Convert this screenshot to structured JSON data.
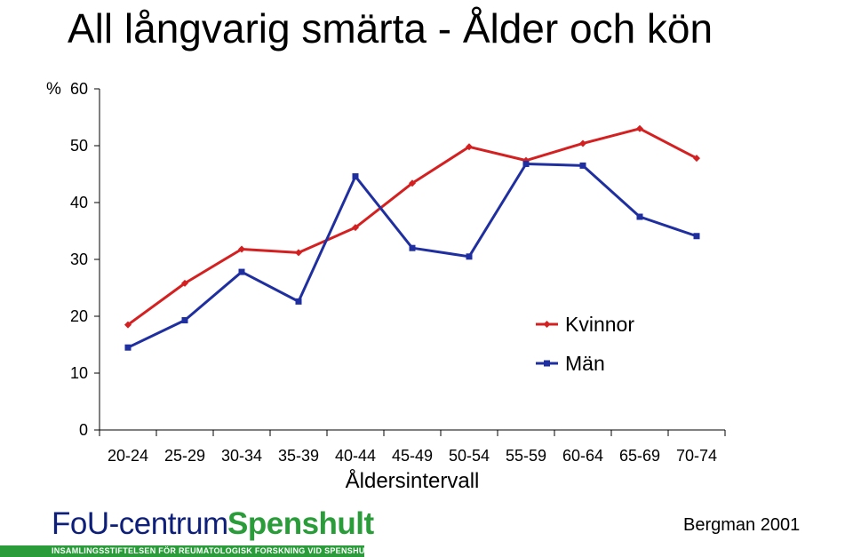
{
  "chart_data": {
    "type": "line",
    "title": "All långvarig smärta - Ålder och kön",
    "ylabel": "%",
    "xlabel": "Åldersintervall",
    "categories": [
      "20-24",
      "25-29",
      "30-34",
      "35-39",
      "40-44",
      "45-49",
      "50-54",
      "55-59",
      "60-64",
      "65-69",
      "70-74"
    ],
    "ylim": [
      0,
      60
    ],
    "yticks": [
      0,
      10,
      20,
      30,
      40,
      50,
      60
    ],
    "grid": false,
    "legend": "right",
    "series": [
      {
        "name": "Kvinnor",
        "color": "#d42020",
        "marker": "diamond",
        "values": [
          18.5,
          25.8,
          31.8,
          31.2,
          35.6,
          43.4,
          49.8,
          47.4,
          50.4,
          53.0,
          47.8
        ]
      },
      {
        "name": "Män",
        "color": "#1f2fa0",
        "marker": "square",
        "values": [
          14.5,
          19.3,
          27.8,
          22.6,
          44.6,
          32.0,
          30.5,
          46.8,
          46.5,
          37.5,
          34.1
        ]
      }
    ]
  },
  "footer": {
    "logo_part1": "FoU-centrum",
    "logo_part2": "Spenshult",
    "logo_tagline": "INSAMLINGSSTIFTELSEN FÖR REUMATOLOGISK FORSKNING VID SPENSHULT",
    "source": "Bergman 2001"
  }
}
